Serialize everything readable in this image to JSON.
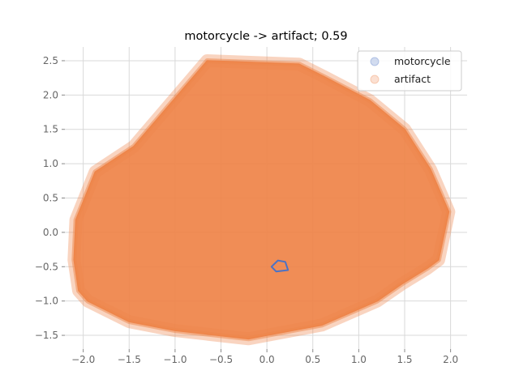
{
  "chart_data": {
    "type": "scatter",
    "title": "motorcycle -> artifact; 0.59",
    "xlabel": "",
    "ylabel": "",
    "xlim": [
      -2.2,
      2.18
    ],
    "ylim": [
      -1.7,
      2.7
    ],
    "xticks": [
      -2.0,
      -1.5,
      -1.0,
      -0.5,
      0.0,
      0.5,
      1.0,
      1.5,
      2.0
    ],
    "xtick_labels": [
      "−2.0",
      "−1.5",
      "−1.0",
      "−0.5",
      "0.0",
      "0.5",
      "1.0",
      "1.5",
      "2.0"
    ],
    "yticks": [
      -1.5,
      -1.0,
      -0.5,
      0.0,
      0.5,
      1.0,
      1.5,
      2.0,
      2.5
    ],
    "ytick_labels": [
      "−1.5",
      "−1.0",
      "−0.5",
      "0.0",
      "0.5",
      "1.0",
      "1.5",
      "2.0",
      "2.5"
    ],
    "grid": true,
    "legend_position": "top-right",
    "series": [
      {
        "name": "motorcycle",
        "color": "#4c72c4",
        "hull": [
          [
            0.05,
            -0.5
          ],
          [
            0.12,
            -0.41
          ],
          [
            0.2,
            -0.43
          ],
          [
            0.23,
            -0.55
          ],
          [
            0.1,
            -0.57
          ],
          [
            0.05,
            -0.5
          ]
        ]
      },
      {
        "name": "artifact",
        "color": "#ee854a",
        "hull": [
          [
            -2.08,
            0.18
          ],
          [
            -1.87,
            0.88
          ],
          [
            -1.45,
            1.25
          ],
          [
            -0.65,
            2.5
          ],
          [
            0.35,
            2.45
          ],
          [
            0.62,
            2.27
          ],
          [
            1.12,
            1.92
          ],
          [
            1.5,
            1.5
          ],
          [
            1.78,
            0.92
          ],
          [
            1.98,
            0.3
          ],
          [
            1.87,
            -0.4
          ],
          [
            1.75,
            -0.52
          ],
          [
            1.47,
            -0.75
          ],
          [
            1.2,
            -1.0
          ],
          [
            0.6,
            -1.35
          ],
          [
            0.0,
            -1.5
          ],
          [
            -0.2,
            -1.55
          ],
          [
            -1.0,
            -1.43
          ],
          [
            -1.5,
            -1.3
          ],
          [
            -1.95,
            -1.0
          ],
          [
            -2.05,
            -0.85
          ],
          [
            -2.1,
            -0.4
          ],
          [
            -2.08,
            0.18
          ]
        ]
      }
    ]
  }
}
